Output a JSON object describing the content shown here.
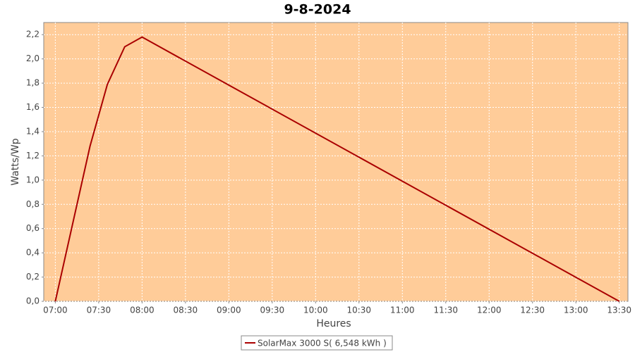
{
  "chart_data": {
    "type": "line",
    "title": "9-8-2024",
    "x_label": "Heures",
    "y_label": "Watts/Wp",
    "x": [
      420,
      444,
      456,
      468,
      480,
      810
    ],
    "series": [
      {
        "name": "SolarMax 3000 S( 6,548 kWh )",
        "color": "#aa0000",
        "values": [
          0,
          1.28,
          1.79,
          2.1,
          2.18,
          0
        ]
      }
    ],
    "xlim": [
      412,
      816
    ],
    "xticks": [
      {
        "value": 420,
        "label": "07:00"
      },
      {
        "value": 450,
        "label": "07:30"
      },
      {
        "value": 480,
        "label": "08:00"
      },
      {
        "value": 510,
        "label": "08:30"
      },
      {
        "value": 540,
        "label": "09:00"
      },
      {
        "value": 570,
        "label": "09:30"
      },
      {
        "value": 600,
        "label": "10:00"
      },
      {
        "value": 630,
        "label": "10:30"
      },
      {
        "value": 660,
        "label": "11:00"
      },
      {
        "value": 690,
        "label": "11:30"
      },
      {
        "value": 720,
        "label": "12:00"
      },
      {
        "value": 750,
        "label": "12:30"
      },
      {
        "value": 780,
        "label": "13:00"
      },
      {
        "value": 810,
        "label": "13:30"
      }
    ],
    "ylim": [
      0,
      2.3
    ],
    "yticks": [
      {
        "value": 0,
        "label": "0,0"
      },
      {
        "value": 0.2,
        "label": "0,2"
      },
      {
        "value": 0.4,
        "label": "0,4"
      },
      {
        "value": 0.6,
        "label": "0,6"
      },
      {
        "value": 0.8,
        "label": "0,8"
      },
      {
        "value": 1.0,
        "label": "1,0"
      },
      {
        "value": 1.2,
        "label": "1,2"
      },
      {
        "value": 1.4,
        "label": "1,4"
      },
      {
        "value": 1.6,
        "label": "1,6"
      },
      {
        "value": 1.8,
        "label": "1,8"
      },
      {
        "value": 2.0,
        "label": "2,0"
      },
      {
        "value": 2.2,
        "label": "2,2"
      }
    ],
    "grid": true,
    "plot_background": "#ffcc99",
    "legend": "bottom"
  }
}
